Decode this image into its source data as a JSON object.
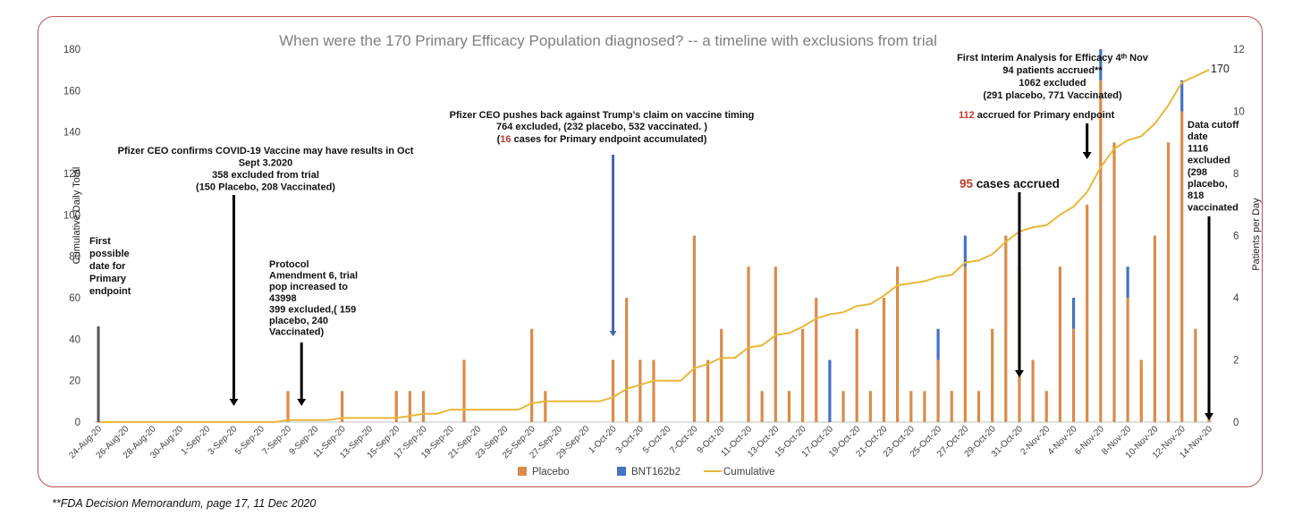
{
  "chart_data": {
    "type": "bar",
    "title": "When were the 170 Primary Efficacy Population diagnosed?  -- a timeline with  exclusions from trial",
    "ylabel_left": "Cumulative Daily Total",
    "ylabel_right": "Patients per Day",
    "ylim_left": [
      0,
      180
    ],
    "ylim_right": [
      0,
      12
    ],
    "left_ticks": [
      "0",
      "20",
      "40",
      "60",
      "80",
      "100",
      "120",
      "140",
      "160",
      "180"
    ],
    "right_ticks": [
      "0",
      "2",
      "4",
      "6",
      "8",
      "10",
      "12"
    ],
    "categories": [
      "24-Aug-20",
      "25-Aug-20",
      "26-Aug-20",
      "27-Aug-20",
      "28-Aug-20",
      "29-Aug-20",
      "30-Aug-20",
      "31-Aug-20",
      "1-Sep-20",
      "2-Sep-20",
      "3-Sep-20",
      "4-Sep-20",
      "5-Sep-20",
      "6-Sep-20",
      "7-Sep-20",
      "8-Sep-20",
      "9-Sep-20",
      "10-Sep-20",
      "11-Sep-20",
      "12-Sep-20",
      "13-Sep-20",
      "14-Sep-20",
      "15-Sep-20",
      "16-Sep-20",
      "17-Sep-20",
      "18-Sep-20",
      "19-Sep-20",
      "20-Sep-20",
      "21-Sep-20",
      "22-Sep-20",
      "23-Sep-20",
      "24-Sep-20",
      "25-Sep-20",
      "26-Sep-20",
      "27-Sep-20",
      "28-Sep-20",
      "29-Sep-20",
      "30-Sep-20",
      "1-Oct-20",
      "2-Oct-20",
      "3-Oct-20",
      "4-Oct-20",
      "5-Oct-20",
      "6-Oct-20",
      "7-Oct-20",
      "8-Oct-20",
      "9-Oct-20",
      "10-Oct-20",
      "11-Oct-20",
      "12-Oct-20",
      "13-Oct-20",
      "14-Oct-20",
      "15-Oct-20",
      "16-Oct-20",
      "17-Oct-20",
      "18-Oct-20",
      "19-Oct-20",
      "20-Oct-20",
      "21-Oct-20",
      "22-Oct-20",
      "23-Oct-20",
      "24-Oct-20",
      "25-Oct-20",
      "26-Oct-20",
      "27-Oct-20",
      "28-Oct-20",
      "29-Oct-20",
      "30-Oct-20",
      "31-Oct-20",
      "1-Nov-20",
      "2-Nov-20",
      "3-Nov-20",
      "4-Nov-20",
      "5-Nov-20",
      "6-Nov-20",
      "7-Nov-20",
      "8-Nov-20",
      "9-Nov-20",
      "10-Nov-20",
      "11-Nov-20",
      "12-Nov-20",
      "13-Nov-20",
      "14-Nov-20"
    ],
    "series": [
      {
        "name": "Placebo",
        "color": "#d98b4a",
        "axis": "right",
        "values": [
          0,
          0,
          0,
          0,
          0,
          0,
          0,
          0,
          0,
          0,
          0,
          0,
          0,
          0,
          1,
          0,
          0,
          0,
          1,
          0,
          0,
          0,
          1,
          1,
          1,
          0,
          0,
          2,
          0,
          0,
          0,
          0,
          3,
          1,
          0,
          0,
          0,
          0,
          2,
          4,
          2,
          2,
          0,
          0,
          6,
          2,
          3,
          0,
          5,
          1,
          5,
          1,
          3,
          4,
          0,
          1,
          3,
          1,
          4,
          5,
          1,
          1,
          2,
          1,
          5,
          1,
          3,
          6,
          5,
          2,
          1,
          5,
          3,
          7,
          11,
          9,
          4,
          2,
          6,
          9,
          10,
          3,
          1
        ]
      },
      {
        "name": "BNT162b2",
        "color": "#4472c4",
        "axis": "right",
        "values": [
          0,
          0,
          0,
          0,
          0,
          0,
          0,
          0,
          0,
          0,
          0,
          0,
          0,
          0,
          0,
          0,
          0,
          0,
          0,
          0,
          0,
          0,
          0,
          0,
          0,
          0,
          0,
          0,
          0,
          0,
          0,
          0,
          0,
          0,
          0,
          0,
          0,
          0,
          0,
          0,
          0,
          0,
          0,
          0,
          0,
          0,
          0,
          0,
          0,
          0,
          0,
          0,
          0,
          0,
          2,
          0,
          0,
          0,
          0,
          0,
          0,
          0,
          1,
          0,
          1,
          0,
          0,
          0,
          0,
          0,
          0,
          0,
          1,
          0,
          1,
          0,
          1,
          0,
          0,
          0,
          1,
          0,
          0
        ]
      },
      {
        "name": "Cumulative",
        "color": "#e8b73a",
        "axis": "left",
        "values": [
          0,
          0,
          0,
          0,
          0,
          0,
          0,
          0,
          0,
          0,
          0,
          0,
          0,
          0,
          1,
          1,
          1,
          1,
          2,
          2,
          2,
          2,
          2,
          3,
          4,
          4,
          6,
          6,
          6,
          6,
          6,
          6,
          9,
          10,
          10,
          10,
          10,
          10,
          12,
          16,
          18,
          20,
          20,
          20,
          26,
          28,
          31,
          31,
          36,
          37,
          42,
          43,
          46,
          50,
          52,
          53,
          56,
          57,
          61,
          66,
          67,
          68,
          70,
          71,
          77,
          78,
          81,
          87,
          92,
          94,
          95,
          100,
          104,
          111,
          123,
          132,
          136,
          138,
          144,
          153,
          164,
          167,
          170
        ]
      }
    ],
    "legend_position": "bottom",
    "annotations": [
      {
        "idx": 0,
        "lines": [
          "First",
          "possible",
          "date for",
          "Primary",
          "endpoint"
        ]
      },
      {
        "idx": 10,
        "lines": [
          "Pfizer CEO confirms COVID-19 Vaccine may have results in Oct",
          "Sept 3.2020",
          "358 excluded from trial",
          "(150 Placebo, 208 Vaccinated)"
        ]
      },
      {
        "idx": 15,
        "lines": [
          "Protocol",
          "Amendment 6, trial",
          "pop increased to",
          "43998",
          "399 excluded,( 159",
          "placebo, 240",
          "Vaccinated)"
        ]
      },
      {
        "idx": 38,
        "lines": [
          "Pfizer CEO pushes back against Trump’s claim on vaccine timing",
          "764 excluded, (232 placebo, 532 vaccinated. )"
        ],
        "red_num": "16",
        "red_rest": " cases for Primary endpoint accumulated)",
        "red_pre": "("
      },
      {
        "idx": 68,
        "red_num": "95",
        "red_rest": " cases accrued"
      },
      {
        "idx": 73,
        "red_num": "112",
        "red_rest": " accrued  for Primary endpoint"
      },
      {
        "idx": 74,
        "lines": [
          "First Interim Analysis for Efficacy 4ᵗʰ Nov",
          "94 patients accrued**",
          "1062 excluded",
          "(291 placebo, 771 Vaccinated)"
        ]
      },
      {
        "idx": 82,
        "lines": [
          "Data cutoff",
          "date",
          "1116",
          "excluded",
          "(298",
          "placebo,",
          "818",
          "vaccinated"
        ]
      }
    ],
    "end_label": "170"
  },
  "footnote": "**FDA Decision Memorandum, page 17, 11 Dec  2020"
}
